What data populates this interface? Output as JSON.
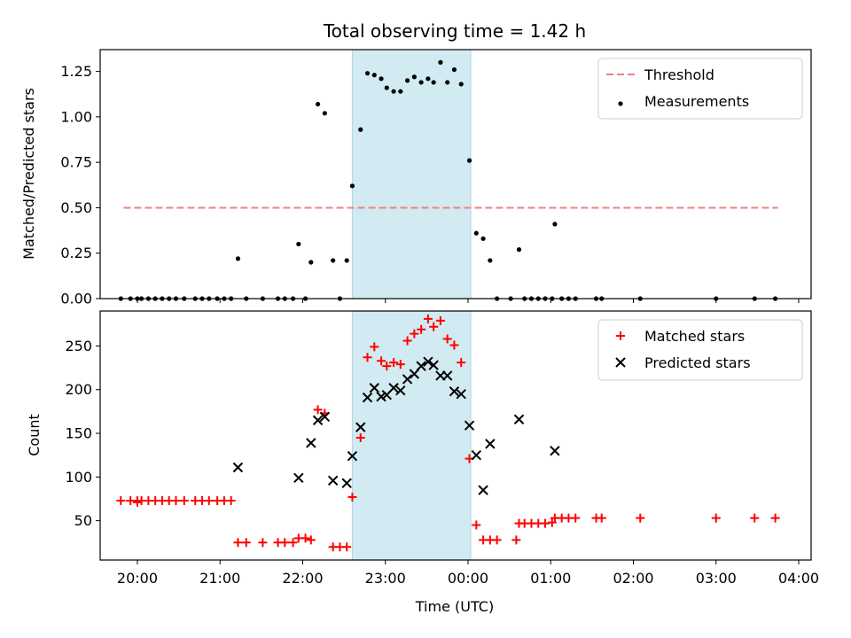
{
  "chart_data": [
    {
      "type": "scatter",
      "title": "Total observing time = 1.42 h",
      "ylabel": "Matched/Predicted stars",
      "xlabel": "",
      "xlim_hours": [
        19.55,
        28.15
      ],
      "ylim": [
        0,
        1.37
      ],
      "yticks": [
        0.0,
        0.25,
        0.5,
        0.75,
        1.0,
        1.25
      ],
      "ytick_labels": [
        "0.00",
        "0.25",
        "0.50",
        "0.75",
        "1.00",
        "1.25"
      ],
      "shaded_region": {
        "from": "22:36",
        "to": "00:02",
        "color": "#add8e6"
      },
      "threshold": {
        "name": "Threshold",
        "y": 0.5,
        "x_from": "19:50",
        "x_to": "03:45",
        "color": "#f08080",
        "style": "dashed"
      },
      "legend": {
        "placement": "top-right",
        "entries": [
          "Threshold",
          "Measurements"
        ]
      },
      "series": [
        {
          "name": "Measurements",
          "color": "#000000",
          "marker": "dot",
          "points": [
            [
              "19:48",
              0.0
            ],
            [
              "19:55",
              0.0
            ],
            [
              "20:00",
              0.0
            ],
            [
              "20:03",
              0.0
            ],
            [
              "20:08",
              0.0
            ],
            [
              "20:13",
              0.0
            ],
            [
              "20:18",
              0.0
            ],
            [
              "20:23",
              0.0
            ],
            [
              "20:28",
              0.0
            ],
            [
              "20:34",
              0.0
            ],
            [
              "20:42",
              0.0
            ],
            [
              "20:47",
              0.0
            ],
            [
              "20:52",
              0.0
            ],
            [
              "20:58",
              0.0
            ],
            [
              "21:03",
              0.0
            ],
            [
              "21:08",
              0.0
            ],
            [
              "21:13",
              0.22
            ],
            [
              "21:19",
              0.0
            ],
            [
              "21:31",
              0.0
            ],
            [
              "21:42",
              0.0
            ],
            [
              "21:47",
              0.0
            ],
            [
              "21:53",
              0.0
            ],
            [
              "21:57",
              0.3
            ],
            [
              "22:02",
              0.0
            ],
            [
              "22:06",
              0.2
            ],
            [
              "22:11",
              1.07
            ],
            [
              "22:16",
              1.02
            ],
            [
              "22:22",
              0.21
            ],
            [
              "22:27",
              0.0
            ],
            [
              "22:32",
              0.21
            ],
            [
              "22:36",
              0.62
            ],
            [
              "22:42",
              0.93
            ],
            [
              "22:47",
              1.24
            ],
            [
              "22:52",
              1.23
            ],
            [
              "22:57",
              1.21
            ],
            [
              "23:01",
              1.16
            ],
            [
              "23:06",
              1.14
            ],
            [
              "23:11",
              1.14
            ],
            [
              "23:16",
              1.2
            ],
            [
              "23:21",
              1.22
            ],
            [
              "23:26",
              1.19
            ],
            [
              "23:31",
              1.21
            ],
            [
              "23:35",
              1.19
            ],
            [
              "23:40",
              1.3
            ],
            [
              "23:45",
              1.19
            ],
            [
              "23:50",
              1.26
            ],
            [
              "23:55",
              1.18
            ],
            [
              "00:01",
              0.76
            ],
            [
              "00:06",
              0.36
            ],
            [
              "00:11",
              0.33
            ],
            [
              "00:16",
              0.21
            ],
            [
              "00:21",
              0.0
            ],
            [
              "00:31",
              0.0
            ],
            [
              "00:37",
              0.27
            ],
            [
              "00:41",
              0.0
            ],
            [
              "00:46",
              0.0
            ],
            [
              "00:51",
              0.0
            ],
            [
              "00:56",
              0.0
            ],
            [
              "01:01",
              0.0
            ],
            [
              "01:03",
              0.41
            ],
            [
              "01:08",
              0.0
            ],
            [
              "01:13",
              0.0
            ],
            [
              "01:18",
              0.0
            ],
            [
              "01:33",
              0.0
            ],
            [
              "01:37",
              0.0
            ],
            [
              "02:05",
              0.0
            ],
            [
              "03:00",
              0.0
            ],
            [
              "03:28",
              0.0
            ],
            [
              "03:43",
              0.0
            ]
          ]
        }
      ]
    },
    {
      "type": "scatter",
      "title": "",
      "ylabel": "Count",
      "xlabel": "Time (UTC)",
      "xlim_hours": [
        19.55,
        28.15
      ],
      "ylim": [
        5,
        290
      ],
      "yticks": [
        50,
        100,
        150,
        200,
        250
      ],
      "ytick_labels": [
        "50",
        "100",
        "150",
        "200",
        "250"
      ],
      "xticks": [
        "20:00",
        "21:00",
        "22:00",
        "23:00",
        "00:00",
        "01:00",
        "02:00",
        "03:00",
        "04:00"
      ],
      "shaded_region": {
        "from": "22:36",
        "to": "00:02",
        "color": "#add8e6"
      },
      "legend": {
        "placement": "top-right",
        "entries": [
          "Matched stars",
          "Predicted stars"
        ]
      },
      "series": [
        {
          "name": "Matched stars",
          "color": "#ff0000",
          "marker": "plus",
          "points": [
            [
              "19:48",
              73
            ],
            [
              "19:55",
              73
            ],
            [
              "20:00",
              73
            ],
            [
              "20:00",
              71
            ],
            [
              "20:03",
              73
            ],
            [
              "20:08",
              73
            ],
            [
              "20:13",
              73
            ],
            [
              "20:18",
              73
            ],
            [
              "20:23",
              73
            ],
            [
              "20:28",
              73
            ],
            [
              "20:34",
              73
            ],
            [
              "20:42",
              73
            ],
            [
              "20:47",
              73
            ],
            [
              "20:52",
              73
            ],
            [
              "20:58",
              73
            ],
            [
              "21:03",
              73
            ],
            [
              "21:08",
              73
            ],
            [
              "21:13",
              25
            ],
            [
              "21:19",
              25
            ],
            [
              "21:31",
              25
            ],
            [
              "21:42",
              25
            ],
            [
              "21:47",
              25
            ],
            [
              "21:53",
              25
            ],
            [
              "21:57",
              30
            ],
            [
              "22:02",
              30
            ],
            [
              "22:06",
              28
            ],
            [
              "22:11",
              177
            ],
            [
              "22:16",
              173
            ],
            [
              "22:22",
              20
            ],
            [
              "22:27",
              20
            ],
            [
              "22:32",
              20
            ],
            [
              "22:36",
              77
            ],
            [
              "22:42",
              145
            ],
            [
              "22:47",
              237
            ],
            [
              "22:52",
              249
            ],
            [
              "22:57",
              233
            ],
            [
              "23:01",
              227
            ],
            [
              "23:06",
              231
            ],
            [
              "23:11",
              229
            ],
            [
              "23:16",
              256
            ],
            [
              "23:21",
              264
            ],
            [
              "23:26",
              269
            ],
            [
              "23:31",
              281
            ],
            [
              "23:35",
              272
            ],
            [
              "23:40",
              279
            ],
            [
              "23:45",
              258
            ],
            [
              "23:50",
              251
            ],
            [
              "23:55",
              231
            ],
            [
              "00:01",
              121
            ],
            [
              "00:06",
              45
            ],
            [
              "00:11",
              28
            ],
            [
              "00:16",
              28
            ],
            [
              "00:21",
              28
            ],
            [
              "00:35",
              28
            ],
            [
              "00:37",
              47
            ],
            [
              "00:41",
              47
            ],
            [
              "00:46",
              47
            ],
            [
              "00:51",
              47
            ],
            [
              "00:56",
              47
            ],
            [
              "01:01",
              48
            ],
            [
              "01:03",
              53
            ],
            [
              "01:08",
              53
            ],
            [
              "01:13",
              53
            ],
            [
              "01:18",
              53
            ],
            [
              "01:33",
              53
            ],
            [
              "01:37",
              53
            ],
            [
              "02:05",
              53
            ],
            [
              "03:00",
              53
            ],
            [
              "03:28",
              53
            ],
            [
              "03:43",
              53
            ]
          ]
        },
        {
          "name": "Predicted stars",
          "color": "#000000",
          "marker": "x",
          "points": [
            [
              "21:13",
              111
            ],
            [
              "21:57",
              99
            ],
            [
              "22:06",
              139
            ],
            [
              "22:11",
              165
            ],
            [
              "22:16",
              169
            ],
            [
              "22:22",
              96
            ],
            [
              "22:32",
              93
            ],
            [
              "22:36",
              124
            ],
            [
              "22:42",
              157
            ],
            [
              "22:47",
              191
            ],
            [
              "22:52",
              202
            ],
            [
              "22:57",
              192
            ],
            [
              "23:01",
              194
            ],
            [
              "23:06",
              202
            ],
            [
              "23:11",
              199
            ],
            [
              "23:16",
              212
            ],
            [
              "23:21",
              218
            ],
            [
              "23:26",
              227
            ],
            [
              "23:31",
              232
            ],
            [
              "23:35",
              228
            ],
            [
              "23:40",
              216
            ],
            [
              "23:45",
              216
            ],
            [
              "23:50",
              198
            ],
            [
              "23:55",
              195
            ],
            [
              "00:01",
              159
            ],
            [
              "00:06",
              125
            ],
            [
              "00:11",
              85
            ],
            [
              "00:16",
              138
            ],
            [
              "00:37",
              166
            ],
            [
              "01:03",
              130
            ]
          ]
        }
      ]
    }
  ]
}
